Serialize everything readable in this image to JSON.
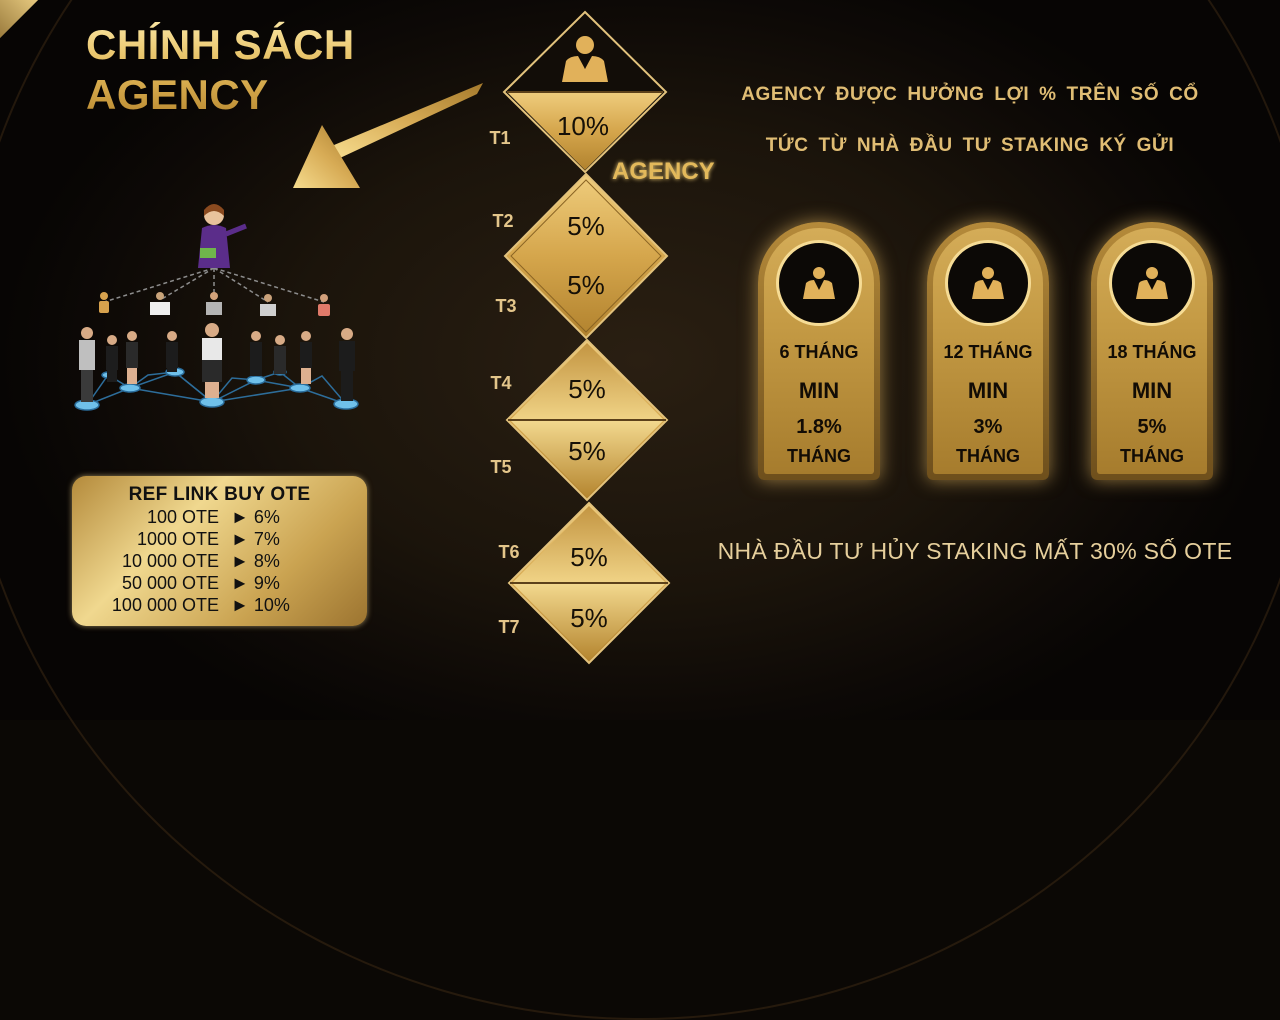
{
  "title": {
    "line1": "CHÍNH SÁCH",
    "line2": "AGENCY"
  },
  "agency_label": "AGENCY",
  "tiers": [
    {
      "label": "T1",
      "value": "10%"
    },
    {
      "label": "T2",
      "value": "5%"
    },
    {
      "label": "T3",
      "value": "5%"
    },
    {
      "label": "T4",
      "value": "5%"
    },
    {
      "label": "T5",
      "value": "5%"
    },
    {
      "label": "T6",
      "value": "5%"
    },
    {
      "label": "T7",
      "value": "5%"
    }
  ],
  "description": {
    "line1": "AGENCY ĐƯỢC HƯỞNG LỢI % TRÊN SỐ CỔ",
    "line2": "TỨC TỪ NHÀ ĐẦU TƯ STAKING KÝ GỬI"
  },
  "staking_cards": [
    {
      "period": "6 THÁNG",
      "min": "MIN",
      "rate": "1.8%",
      "unit": "THÁNG"
    },
    {
      "period": "12 THÁNG",
      "min": "MIN",
      "rate": "3%",
      "unit": "THÁNG"
    },
    {
      "period": "18 THÁNG",
      "min": "MIN",
      "rate": "5%",
      "unit": "THÁNG"
    }
  ],
  "cancel_note": "NHÀ ĐẦU TƯ HỦY STAKING MẤT 30% SỐ OTE",
  "ref_link": {
    "title": "REF LINK BUY OTE",
    "rows": [
      {
        "amount": "100 OTE",
        "rate": "► 6%"
      },
      {
        "amount": "1000 OTE",
        "rate": "► 7%"
      },
      {
        "amount": "10 000 OTE",
        "rate": "► 8%"
      },
      {
        "amount": "50 000 OTE",
        "rate": "► 9%"
      },
      {
        "amount": "100 000 OTE",
        "rate": "► 10%"
      }
    ]
  },
  "colors": {
    "gold": "#d9b25f",
    "gold_light": "#f5dd96",
    "gold_dark": "#8a6424",
    "background": "#0b0805"
  }
}
